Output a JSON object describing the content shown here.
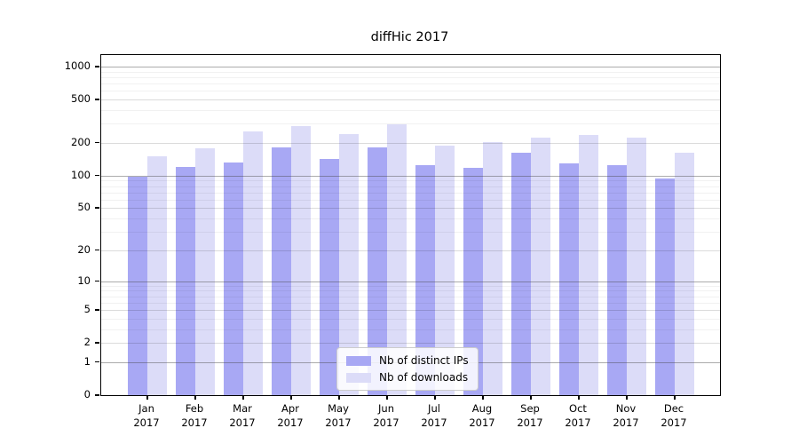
{
  "title": "diffHic 2017",
  "chart_data": {
    "type": "bar",
    "title": "diffHic 2017",
    "xlabel": "",
    "ylabel": "",
    "y_scale": "log1p",
    "grid": "on",
    "legend_position": "lower center",
    "y_ticks": [
      0,
      1,
      2,
      5,
      10,
      20,
      50,
      100,
      200,
      500,
      1000
    ],
    "y_minor_gridlines": [
      3,
      4,
      6,
      7,
      8,
      9,
      30,
      40,
      60,
      70,
      80,
      90,
      300,
      400,
      600,
      700,
      800,
      900
    ],
    "ylim": [
      0,
      1275
    ],
    "categories": [
      "Jan 2017",
      "Feb 2017",
      "Mar 2017",
      "Apr 2017",
      "May 2017",
      "Jun 2017",
      "Jul 2017",
      "Aug 2017",
      "Sep 2017",
      "Oct 2017",
      "Nov 2017",
      "Dec 2017"
    ],
    "series": [
      {
        "name": "Nb of distinct IPs",
        "color": "#a8a8f4",
        "values": [
          98,
          120,
          132,
          181,
          142,
          181,
          126,
          118,
          164,
          129,
          124,
          95
        ]
      },
      {
        "name": "Nb of downloads",
        "color": "#dcdcf8",
        "values": [
          152,
          180,
          254,
          288,
          242,
          298,
          188,
          203,
          224,
          238,
          222,
          163
        ]
      }
    ]
  }
}
